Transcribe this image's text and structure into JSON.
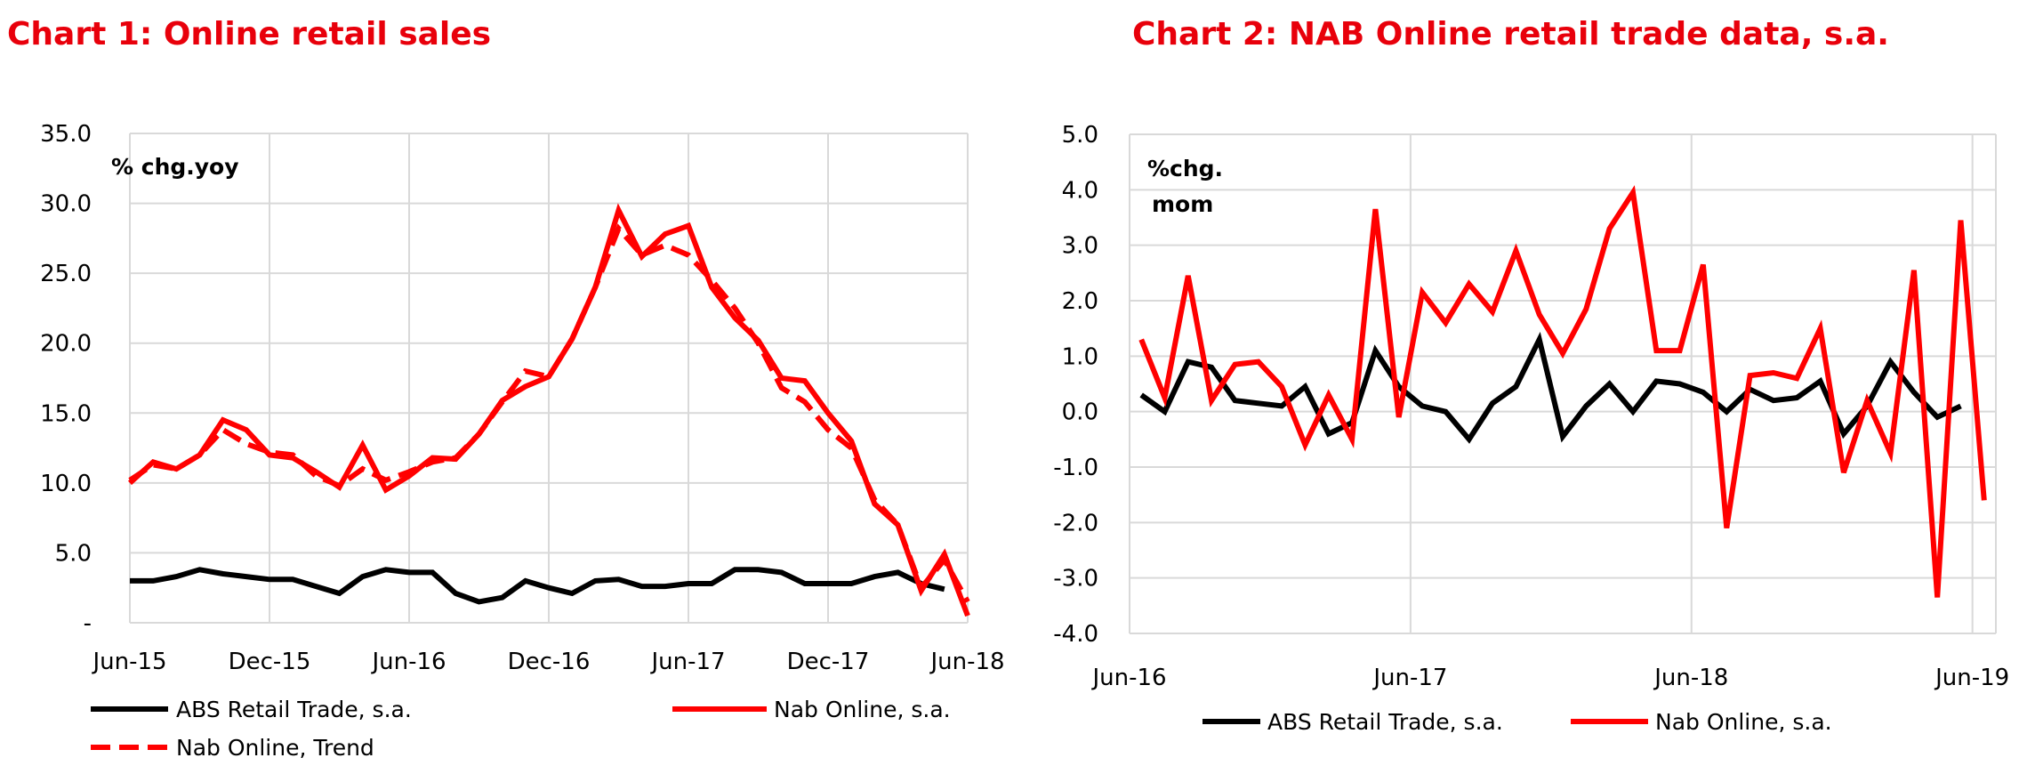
{
  "colors": {
    "abs": "#000000",
    "nab": "#ff0000",
    "title": "#e8000b",
    "grid": "#d9d9d9"
  },
  "chart_data": [
    {
      "type": "line",
      "title": "Chart 1: Online retail sales",
      "unit_label": "% chg.yoy",
      "ylim": [
        0,
        35
      ],
      "yticks": [
        "-",
        "5.0",
        "10.0",
        "15.0",
        "20.0",
        "25.0",
        "30.0",
        "35.0"
      ],
      "xticks": [
        "Jun-15",
        "Dec-15",
        "Jun-16",
        "Dec-16",
        "Jun-17",
        "Dec-17",
        "Jun-18"
      ],
      "x_start": "Jun-15",
      "x_end": "Jun-18",
      "frequency": "monthly",
      "grid": true,
      "legend": "bottom",
      "series": [
        {
          "name": "ABS Retail Trade, s.a.",
          "color": "#000000",
          "dash": false,
          "values": [
            3.0,
            3.0,
            3.3,
            3.8,
            3.5,
            3.3,
            3.1,
            3.1,
            2.6,
            2.1,
            3.3,
            3.8,
            3.6,
            3.6,
            2.1,
            1.5,
            1.8,
            3.0,
            2.5,
            2.1,
            3.0,
            3.1,
            2.6,
            2.6,
            2.8,
            2.8,
            3.8,
            3.8,
            3.6,
            2.8,
            2.8,
            2.8,
            3.3,
            3.6,
            2.8,
            2.4
          ]
        },
        {
          "name": "Nab Online, s.a.",
          "color": "#ff0000",
          "dash": false,
          "values": [
            10.0,
            11.5,
            11.0,
            12.0,
            14.5,
            13.8,
            12.0,
            11.8,
            10.8,
            9.7,
            12.7,
            9.5,
            10.5,
            11.8,
            11.7,
            13.5,
            15.9,
            16.9,
            17.6,
            20.3,
            24.0,
            29.5,
            26.2,
            27.8,
            28.4,
            24.0,
            21.8,
            20.2,
            17.5,
            17.3,
            15.0,
            13.0,
            8.5,
            7.0,
            2.3,
            4.9,
            0.5
          ]
        },
        {
          "name": "Nab Online, Trend",
          "color": "#ff0000",
          "dash": true,
          "values": [
            10.2,
            11.3,
            11.0,
            12.0,
            13.8,
            12.8,
            12.2,
            12.0,
            10.5,
            9.8,
            11.0,
            10.2,
            10.8,
            11.5,
            11.8,
            13.5,
            15.8,
            18.0,
            17.6,
            20.3,
            24.0,
            28.2,
            26.3,
            27.0,
            26.3,
            24.5,
            22.5,
            20.0,
            16.8,
            15.8,
            13.8,
            12.5,
            8.8,
            7.0,
            2.5,
            4.5,
            1.5
          ]
        }
      ]
    },
    {
      "type": "line",
      "title": "Chart 2: NAB Online retail trade data, s.a.",
      "unit_label": [
        "%chg.",
        "mom"
      ],
      "ylim": [
        -4,
        5
      ],
      "yticks": [
        "-4.0",
        "-3.0",
        "-2.0",
        "-1.0",
        "0.0",
        "1.0",
        "2.0",
        "3.0",
        "4.0",
        "5.0"
      ],
      "xticks": [
        "Jun-16",
        "Jun-17",
        "Jun-18",
        "Jun-19"
      ],
      "x_start": "Jun-16",
      "x_end": "Jun-19",
      "frequency": "monthly",
      "grid": true,
      "legend": "bottom",
      "series": [
        {
          "name": "ABS Retail Trade, s.a.",
          "color": "#000000",
          "values": [
            0.3,
            0.0,
            0.9,
            0.8,
            0.2,
            0.15,
            0.1,
            0.45,
            -0.4,
            -0.2,
            1.1,
            0.45,
            0.1,
            0.0,
            -0.5,
            0.15,
            0.45,
            1.3,
            -0.45,
            0.1,
            0.5,
            0.0,
            0.55,
            0.5,
            0.35,
            0.0,
            0.4,
            0.2,
            0.25,
            0.55,
            -0.4,
            0.1,
            0.9,
            0.35,
            -0.1,
            0.1
          ]
        },
        {
          "name": "Nab Online, s.a.",
          "color": "#ff0000",
          "values": [
            1.3,
            0.25,
            2.45,
            0.2,
            0.85,
            0.9,
            0.45,
            -0.6,
            0.3,
            -0.5,
            3.65,
            -0.1,
            2.15,
            1.6,
            2.3,
            1.8,
            2.9,
            1.75,
            1.05,
            1.85,
            3.3,
            3.95,
            1.1,
            1.1,
            2.65,
            -2.1,
            0.65,
            0.7,
            0.6,
            1.5,
            -1.1,
            0.2,
            -0.75,
            2.55,
            -3.35,
            3.45,
            -1.6
          ]
        }
      ]
    }
  ]
}
